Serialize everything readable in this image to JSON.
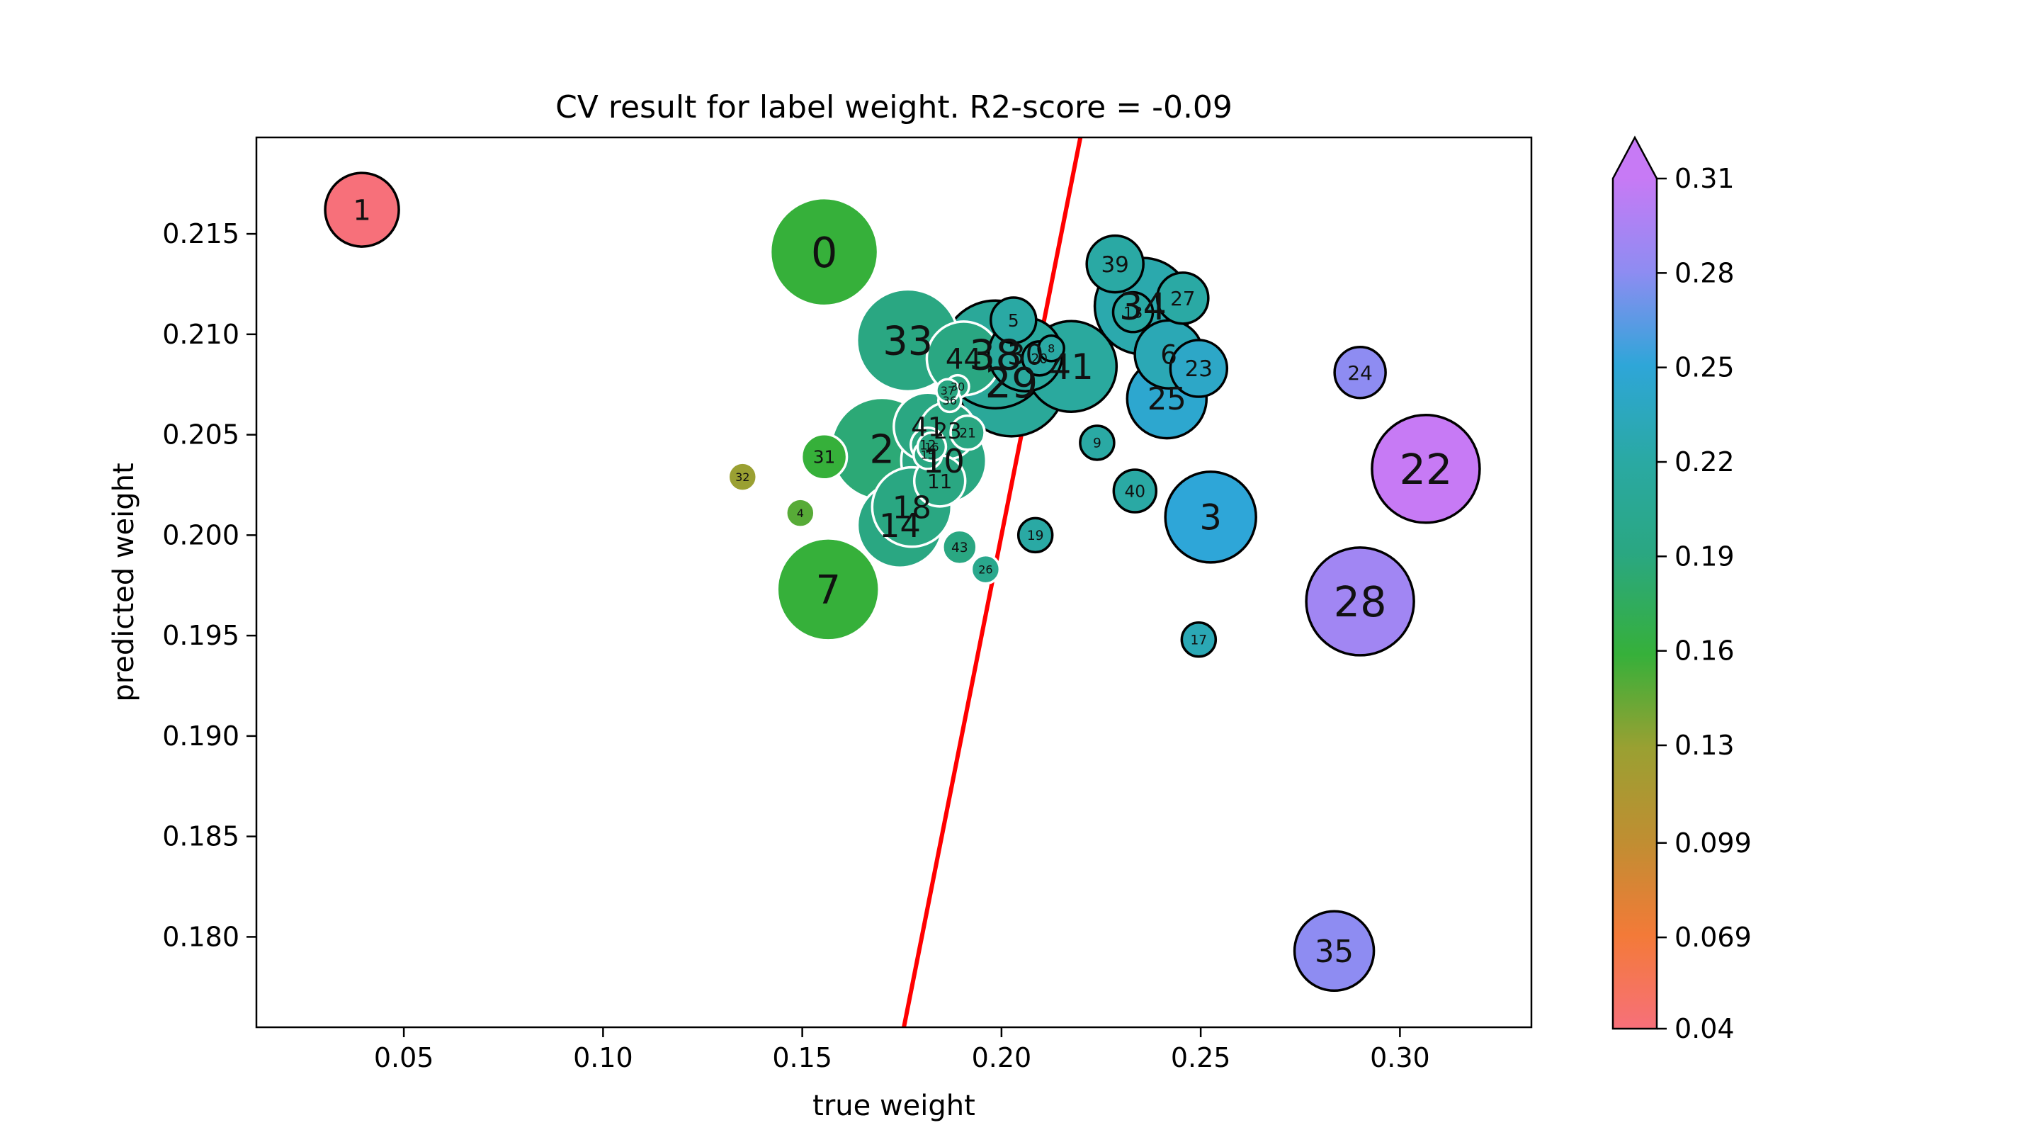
{
  "chart_data": {
    "type": "scatter",
    "title": "CV result for label weight. R2-score = -0.09",
    "xlabel": "true weight",
    "ylabel": "predicted weight",
    "xlim": [
      0.013,
      0.333
    ],
    "ylim": [
      0.1755,
      0.2198
    ],
    "x_ticks": [
      0.05,
      0.1,
      0.15,
      0.2,
      0.25,
      0.3
    ],
    "x_tick_labels": [
      "0.05",
      "0.10",
      "0.15",
      "0.20",
      "0.25",
      "0.30"
    ],
    "y_ticks": [
      0.18,
      0.185,
      0.19,
      0.195,
      0.2,
      0.205,
      0.21,
      0.215
    ],
    "y_tick_labels": [
      "0.180",
      "0.185",
      "0.190",
      "0.195",
      "0.200",
      "0.205",
      "0.210",
      "0.215"
    ],
    "fit_line": {
      "color": "#ff0000",
      "points": [
        [
          0.1755,
          0.1755
        ],
        [
          0.2198,
          0.2198
        ]
      ]
    },
    "colorbar": {
      "range": [
        0.04,
        0.31
      ],
      "tick_values": [
        0.04,
        0.069,
        0.099,
        0.13,
        0.16,
        0.19,
        0.22,
        0.25,
        0.28,
        0.31
      ],
      "tick_labels": [
        "0.04",
        "0.069",
        "0.099",
        "0.13",
        "0.16",
        "0.19",
        "0.22",
        "0.25",
        "0.28",
        "0.31"
      ],
      "extend": "max",
      "colors": [
        "#f7707a",
        "#f37a38",
        "#c08e32",
        "#9aa032",
        "#36b03a",
        "#2aa782",
        "#2aa9a4",
        "#2ea6d8",
        "#8e8cf2",
        "#c77af5"
      ]
    },
    "points": [
      {
        "label": "0",
        "x": 0.1555,
        "y": 0.2141,
        "size": 38,
        "color": 0.16,
        "edge": "white"
      },
      {
        "label": "1",
        "x": 0.0395,
        "y": 0.2162,
        "size": 26,
        "color": 0.04,
        "edge": "black"
      },
      {
        "label": "2",
        "x": 0.17,
        "y": 0.2043,
        "size": 36,
        "color": 0.185,
        "edge": "white"
      },
      {
        "label": "3",
        "x": 0.2525,
        "y": 0.2009,
        "size": 32,
        "color": 0.25,
        "edge": "black"
      },
      {
        "label": "4",
        "x": 0.1495,
        "y": 0.2011,
        "size": 10,
        "color": 0.15,
        "edge": "white"
      },
      {
        "label": "5",
        "x": 0.203,
        "y": 0.2107,
        "size": 16,
        "color": 0.22,
        "edge": "black"
      },
      {
        "label": "6",
        "x": 0.242,
        "y": 0.209,
        "size": 24,
        "color": 0.23,
        "edge": "black"
      },
      {
        "label": "7",
        "x": 0.1565,
        "y": 0.1973,
        "size": 36,
        "color": 0.16,
        "edge": "white"
      },
      {
        "label": "8",
        "x": 0.2125,
        "y": 0.2093,
        "size": 9,
        "color": 0.22,
        "edge": "black"
      },
      {
        "label": "9",
        "x": 0.224,
        "y": 0.2046,
        "size": 12,
        "color": 0.22,
        "edge": "black"
      },
      {
        "label": "10",
        "x": 0.1855,
        "y": 0.2037,
        "size": 30,
        "color": 0.19,
        "edge": "white"
      },
      {
        "label": "11",
        "x": 0.1845,
        "y": 0.2027,
        "size": 18,
        "color": 0.19,
        "edge": "white"
      },
      {
        "label": "12",
        "x": 0.1815,
        "y": 0.2045,
        "size": 12,
        "color": 0.19,
        "edge": "white"
      },
      {
        "label": "13",
        "x": 0.233,
        "y": 0.2111,
        "size": 14,
        "color": 0.22,
        "edge": "black"
      },
      {
        "label": "14",
        "x": 0.1745,
        "y": 0.2005,
        "size": 30,
        "color": 0.19,
        "edge": "white"
      },
      {
        "label": "15",
        "x": 0.1815,
        "y": 0.204,
        "size": 10,
        "color": 0.19,
        "edge": "white"
      },
      {
        "label": "16",
        "x": 0.1825,
        "y": 0.2044,
        "size": 10,
        "color": 0.19,
        "edge": "white"
      },
      {
        "label": "17",
        "x": 0.2495,
        "y": 0.1948,
        "size": 12,
        "color": 0.23,
        "edge": "black"
      },
      {
        "label": "18",
        "x": 0.1775,
        "y": 0.2014,
        "size": 28,
        "color": 0.19,
        "edge": "white"
      },
      {
        "label": "19",
        "x": 0.2085,
        "y": 0.2,
        "size": 12,
        "color": 0.22,
        "edge": "black"
      },
      {
        "label": "20",
        "x": 0.2095,
        "y": 0.2088,
        "size": 12,
        "color": 0.22,
        "edge": "black"
      },
      {
        "label": "21",
        "x": 0.1915,
        "y": 0.2051,
        "size": 12,
        "color": 0.19,
        "edge": "white"
      },
      {
        "label": "22",
        "x": 0.3065,
        "y": 0.2033,
        "size": 38,
        "color": 0.31,
        "edge": "black"
      },
      {
        "label": "23",
        "x": 0.2495,
        "y": 0.2083,
        "size": 20,
        "color": 0.24,
        "edge": "black"
      },
      {
        "label": "24",
        "x": 0.29,
        "y": 0.2081,
        "size": 18,
        "color": 0.28,
        "edge": "black"
      },
      {
        "label": "25",
        "x": 0.2415,
        "y": 0.2068,
        "size": 28,
        "color": 0.245,
        "edge": "black"
      },
      {
        "label": "26",
        "x": 0.196,
        "y": 0.1983,
        "size": 10,
        "color": 0.2,
        "edge": "white"
      },
      {
        "label": "27",
        "x": 0.2455,
        "y": 0.2118,
        "size": 18,
        "color": 0.22,
        "edge": "black"
      },
      {
        "label": "28",
        "x": 0.29,
        "y": 0.1967,
        "size": 38,
        "color": 0.29,
        "edge": "black"
      },
      {
        "label": "29",
        "x": 0.2025,
        "y": 0.2076,
        "size": 38,
        "color": 0.21,
        "edge": "black"
      },
      {
        "label": "30",
        "x": 0.189,
        "y": 0.2074,
        "size": 8,
        "color": 0.19,
        "edge": "white"
      },
      {
        "label": "31",
        "x": 0.1555,
        "y": 0.2039,
        "size": 16,
        "color": 0.16,
        "edge": "white"
      },
      {
        "label": "32",
        "x": 0.135,
        "y": 0.2029,
        "size": 10,
        "color": 0.13,
        "edge": "white"
      },
      {
        "label": "33",
        "x": 0.1765,
        "y": 0.2097,
        "size": 36,
        "color": 0.19,
        "edge": "white"
      },
      {
        "label": "34",
        "x": 0.2355,
        "y": 0.2114,
        "size": 34,
        "color": 0.225,
        "edge": "black"
      },
      {
        "label": "35",
        "x": 0.2835,
        "y": 0.1793,
        "size": 28,
        "color": 0.28,
        "edge": "black"
      },
      {
        "label": "36",
        "x": 0.187,
        "y": 0.2067,
        "size": 8,
        "color": 0.19,
        "edge": "white"
      },
      {
        "label": "37",
        "x": 0.1865,
        "y": 0.2072,
        "size": 8,
        "color": 0.19,
        "edge": "white"
      },
      {
        "label": "38",
        "x": 0.1985,
        "y": 0.209,
        "size": 38,
        "color": 0.21,
        "edge": "black"
      },
      {
        "label": "39",
        "x": 0.2285,
        "y": 0.2135,
        "size": 20,
        "color": 0.22,
        "edge": "black"
      },
      {
        "label": "40",
        "x": 0.2335,
        "y": 0.2022,
        "size": 15,
        "color": 0.22,
        "edge": "black"
      },
      {
        "label": "41",
        "x": 0.1815,
        "y": 0.2054,
        "size": 24,
        "color": 0.19,
        "edge": "white"
      },
      {
        "label": "41",
        "x": 0.2175,
        "y": 0.2084,
        "size": 32,
        "color": 0.215,
        "edge": "black"
      },
      {
        "label": "43",
        "x": 0.1895,
        "y": 0.1994,
        "size": 12,
        "color": 0.19,
        "edge": "white"
      },
      {
        "label": "44",
        "x": 0.1905,
        "y": 0.2088,
        "size": 26,
        "color": 0.19,
        "edge": "white"
      },
      {
        "label": "23",
        "x": 0.1865,
        "y": 0.2052,
        "size": 20,
        "color": 0.19,
        "edge": "white"
      },
      {
        "label": "30",
        "x": 0.206,
        "y": 0.209,
        "size": 26,
        "color": 0.215,
        "edge": "black"
      }
    ]
  }
}
